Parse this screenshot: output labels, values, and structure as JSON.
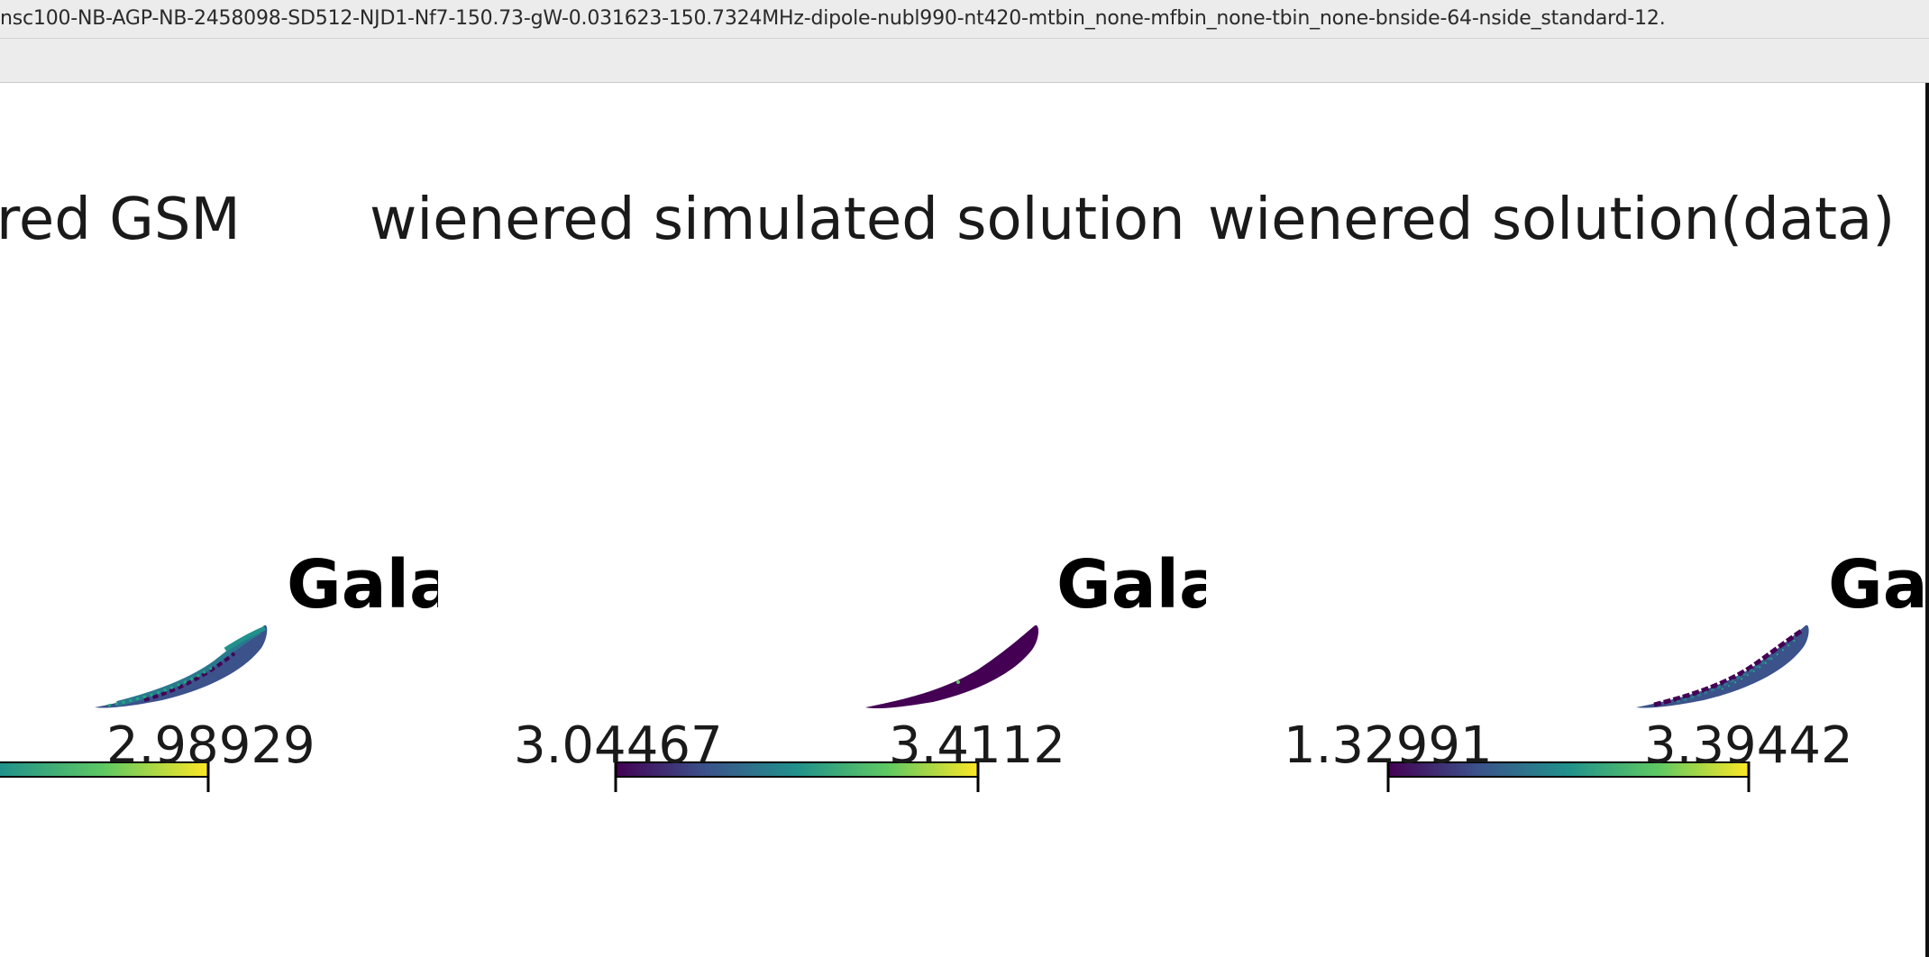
{
  "window": {
    "title": "nsc100-NB-AGP-NB-2458098-SD512-NJD1-Nf7-150.73-gW-0.031623-150.7324MHz-dipole-nubl990-nt420-mtbin_none-mfbin_none-tbin_none-bnside-64-nside_standard-12."
  },
  "panels": [
    {
      "title": "red GSM",
      "map_label": "Gala",
      "colorbar": {
        "min_label": "",
        "max_label": "2.98929"
      }
    },
    {
      "title": "wienered simulated solution",
      "map_label": "Gala",
      "colorbar": {
        "min_label": "3.04467",
        "max_label": "3.4112"
      }
    },
    {
      "title": "wienered solution(data)",
      "map_label": "Ga",
      "colorbar": {
        "min_label": "1.32991",
        "max_label": "3.39442"
      }
    }
  ],
  "colormap": {
    "name": "viridis",
    "stops": [
      "#440154",
      "#3b528b",
      "#21918c",
      "#5ec962",
      "#fde725"
    ]
  }
}
